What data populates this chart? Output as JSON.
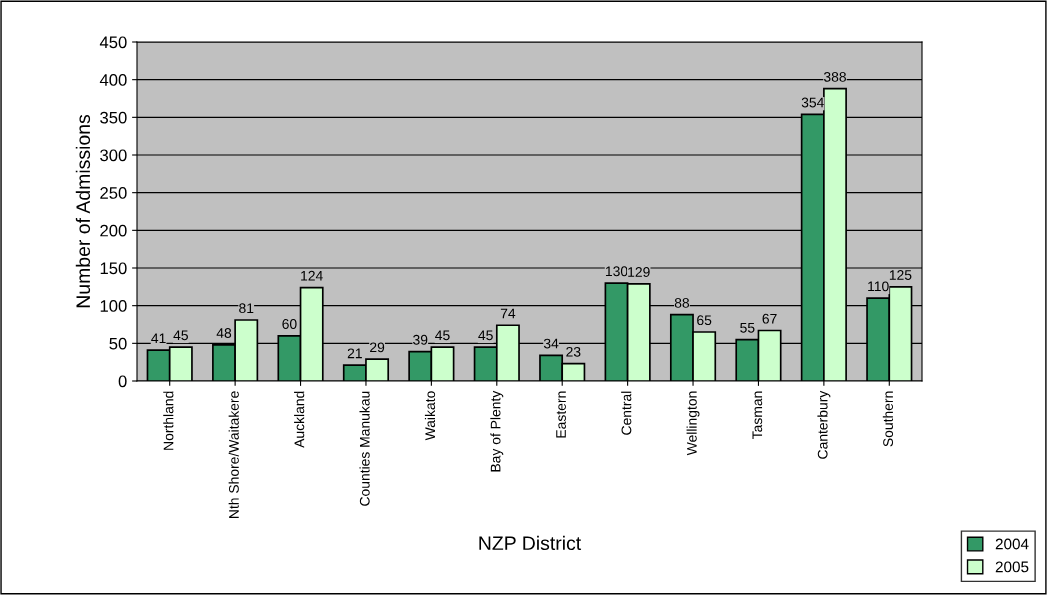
{
  "chart_data": {
    "type": "bar",
    "xlabel": "NZP District",
    "ylabel": "Number of Admissions",
    "categories": [
      "Northland",
      "Nth Shore/Waitakere",
      "Auckland",
      "Counties Manukau",
      "Waikato",
      "Bay of Plenty",
      "Eastern",
      "Central",
      "Wellington",
      "Tasman",
      "Canterbury",
      "Southern"
    ],
    "series": [
      {
        "name": "2004",
        "color": "#339966",
        "values": [
          41,
          48,
          60,
          21,
          39,
          45,
          34,
          130,
          88,
          55,
          354,
          110
        ]
      },
      {
        "name": "2005",
        "color": "#ccffcc",
        "values": [
          45,
          81,
          124,
          29,
          45,
          74,
          23,
          129,
          65,
          67,
          388,
          125
        ]
      }
    ],
    "ylim": [
      0,
      450
    ],
    "yticks": [
      0,
      50,
      100,
      150,
      200,
      250,
      300,
      350,
      400,
      450
    ],
    "grid": "y",
    "legend": "bottom right",
    "data_labels": true
  }
}
